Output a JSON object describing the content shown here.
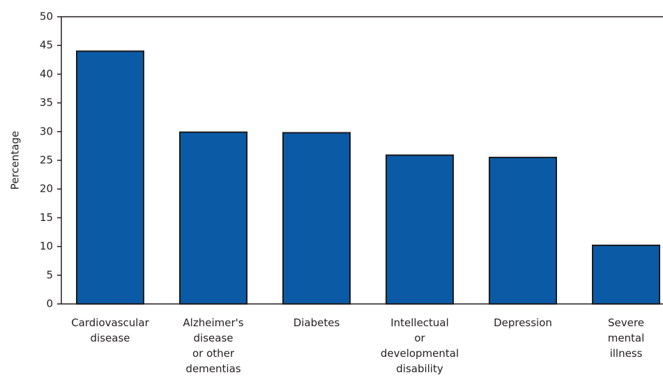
{
  "chart_data": {
    "type": "bar",
    "y_label": "Percentage",
    "categories": [
      "Cardiovascular\ndisease",
      "Alzheimer's\ndisease\nor other\ndementias",
      "Diabetes",
      "Intellectual\nor\ndevelopmental\ndisability",
      "Depression",
      "Severe\nmental\nillness"
    ],
    "values": [
      44,
      29.9,
      29.8,
      25.9,
      25.5,
      10.2
    ],
    "color": "#0a5aa6",
    "ylim": [
      0,
      50
    ],
    "yticks": [
      0,
      5,
      10,
      15,
      20,
      25,
      30,
      35,
      40,
      45,
      50
    ]
  }
}
